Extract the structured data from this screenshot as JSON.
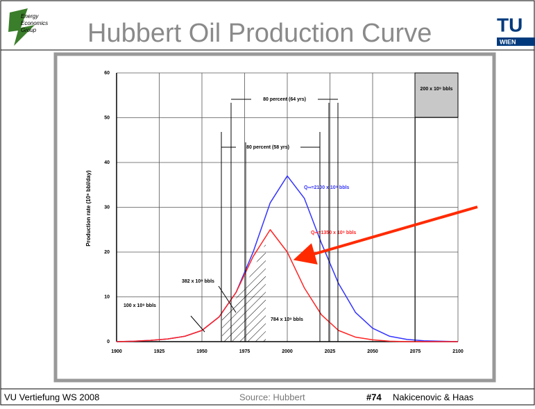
{
  "header": {
    "title": "Hubbert Oil Production Curve",
    "logo_left": [
      "Energy",
      "Economics",
      "Group"
    ],
    "logo_right": [
      "TU",
      "WIEN"
    ]
  },
  "footer": {
    "course": "VU Vertiefung WS 2008",
    "source": "Source: Hubbert",
    "slide": "#74",
    "authors": "Nakicenovic & Haas"
  },
  "chart_data": {
    "type": "line",
    "ylabel": "Production rate (10⁶ bbl/day)",
    "x": [
      1900,
      1910,
      1920,
      1930,
      1940,
      1950,
      1960,
      1970,
      1980,
      1990,
      2000,
      2010,
      2020,
      2030,
      2040,
      2050,
      2060,
      2070,
      2080,
      2090,
      2100
    ],
    "series": [
      {
        "name": "Q∞=2100 x 10⁹ bbls",
        "color": "#3333ff",
        "values": [
          0,
          0.1,
          0.3,
          0.6,
          1.2,
          2.5,
          5.5,
          11,
          20,
          31,
          37,
          32,
          22,
          13,
          6.5,
          3,
          1.2,
          0.5,
          0.2,
          0.1,
          0
        ]
      },
      {
        "name": "Q∞=1350 x 10⁹ bbls",
        "color": "#ff2222",
        "values": [
          0,
          0.1,
          0.3,
          0.6,
          1.2,
          2.5,
          5.5,
          11,
          19,
          25,
          20,
          12,
          6,
          2.5,
          1,
          0.4,
          0.1,
          0,
          0,
          0,
          0
        ]
      }
    ],
    "xlim": [
      1900,
      2100
    ],
    "xticks": [
      1900,
      1925,
      1950,
      1975,
      2000,
      2025,
      2050,
      2075,
      2100
    ],
    "ylim": [
      0,
      60
    ],
    "yticks": [
      0,
      10,
      20,
      30,
      40,
      50,
      60
    ],
    "grid": true,
    "annotations": {
      "top_bracket": "80 percent (64 yrs)",
      "mid_bracket": "80 percent (58 yrs)",
      "box": "200 x 10⁹ bbls",
      "cum_382": "382 x 10⁹ bbls",
      "cum_100": "100 x 10⁹ bbls",
      "cum_784": "784 x 10⁹ bbls"
    }
  }
}
